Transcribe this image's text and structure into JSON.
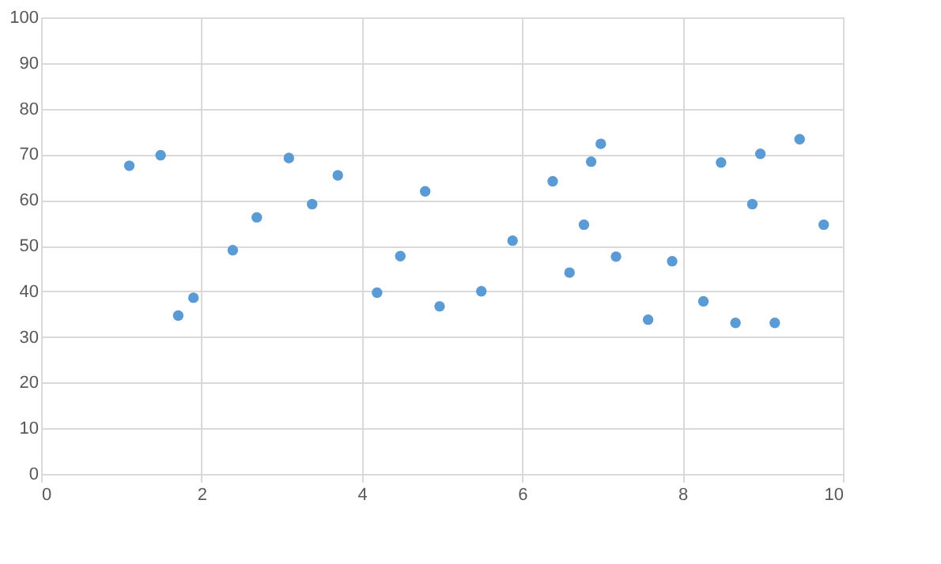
{
  "chart_data": {
    "type": "scatter",
    "x": [
      1.1,
      1.49,
      1.71,
      1.9,
      2.39,
      2.69,
      3.09,
      3.38,
      3.7,
      4.19,
      4.48,
      4.79,
      4.97,
      5.49,
      5.88,
      6.38,
      6.59,
      6.77,
      6.86,
      6.98,
      7.17,
      7.57,
      7.87,
      8.26,
      8.48,
      8.66,
      8.87,
      8.97,
      9.15,
      9.46,
      9.76
    ],
    "series": [
      {
        "color": "#5b9bd5",
        "values": [
          67.5,
          69.8,
          34.7,
          38.6,
          49.0,
          56.2,
          69.2,
          59.1,
          65.4,
          39.7,
          47.7,
          61.9,
          36.7,
          40.0,
          51.1,
          64.1,
          44.1,
          54.6,
          68.4,
          72.3,
          47.6,
          33.8,
          46.6,
          37.8,
          68.2,
          33.1,
          59.1,
          70.1,
          33.1,
          73.3,
          54.6
        ]
      }
    ],
    "xlim": [
      0,
      10
    ],
    "xticks": [
      0,
      2,
      4,
      6,
      8,
      10
    ],
    "ylim": [
      0,
      100
    ],
    "yticks": [
      0,
      10,
      20,
      30,
      40,
      50,
      60,
      70,
      80,
      90,
      100
    ],
    "grid": true,
    "marker": "circle",
    "legend": false
  }
}
